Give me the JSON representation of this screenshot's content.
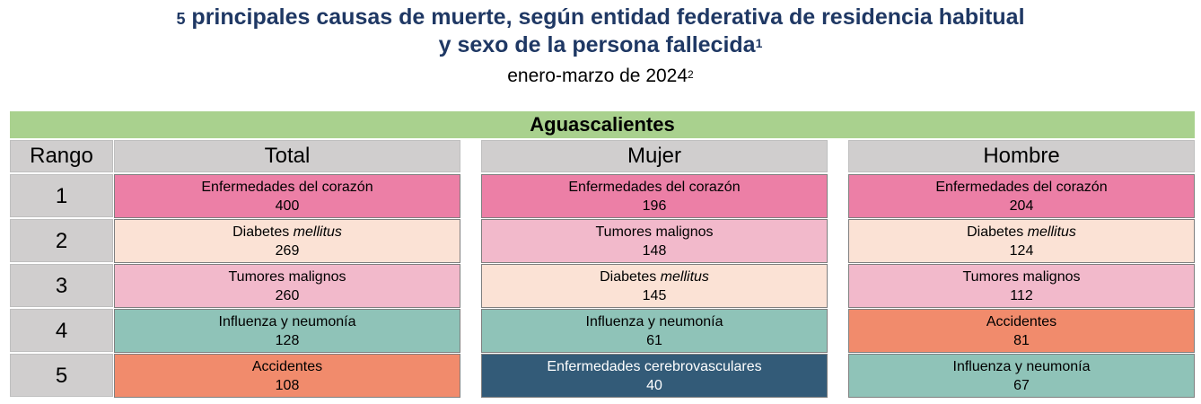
{
  "title": {
    "line1_prefix": "5",
    "line1_rest": " principales causas de muerte, según entidad federativa de residencia habitual",
    "line2": "y sexo de la persona fallecida",
    "line2_note": "1",
    "subtitle": "enero-marzo de 2024",
    "subtitle_note": "2"
  },
  "state": "Aguascalientes",
  "headers": {
    "rank": "Rango",
    "total": "Total",
    "mujer": "Mujer",
    "hombre": "Hombre"
  },
  "ranks": [
    "1",
    "2",
    "3",
    "4",
    "5"
  ],
  "colors": {
    "Enfermedades del corazón": "#ec7fa6",
    "Diabetes mellitus": "#fbe2d5",
    "Tumores malignos": "#f2b9cb",
    "Influenza y neumonía": "#8fc3b8",
    "Accidentes": "#f18b6c",
    "Enfermedades cerebrovasculares": "#335b78",
    "header_gray": "#d0cece",
    "state_green": "#a9d18e",
    "title_navy": "#1f3864"
  },
  "columns": {
    "total": [
      {
        "cause": "Enfermedades del corazón",
        "value": "400"
      },
      {
        "cause": "Diabetes ",
        "cause_italic": "mellitus",
        "value": "269"
      },
      {
        "cause": "Tumores malignos",
        "value": "260"
      },
      {
        "cause": "Influenza y neumonía",
        "value": "128"
      },
      {
        "cause": "Accidentes",
        "value": "108"
      }
    ],
    "mujer": [
      {
        "cause": "Enfermedades del corazón",
        "value": "196"
      },
      {
        "cause": "Tumores malignos",
        "value": "148"
      },
      {
        "cause": "Diabetes ",
        "cause_italic": "mellitus",
        "value": "145"
      },
      {
        "cause": "Influenza y neumonía",
        "value": "61"
      },
      {
        "cause": "Enfermedades cerebrovasculares",
        "value": "40"
      }
    ],
    "hombre": [
      {
        "cause": "Enfermedades del corazón",
        "value": "204"
      },
      {
        "cause": "Diabetes ",
        "cause_italic": "mellitus",
        "value": "124"
      },
      {
        "cause": "Tumores malignos",
        "value": "112"
      },
      {
        "cause": "Accidentes",
        "value": "81"
      },
      {
        "cause": "Influenza y neumonía",
        "value": "67"
      }
    ]
  }
}
